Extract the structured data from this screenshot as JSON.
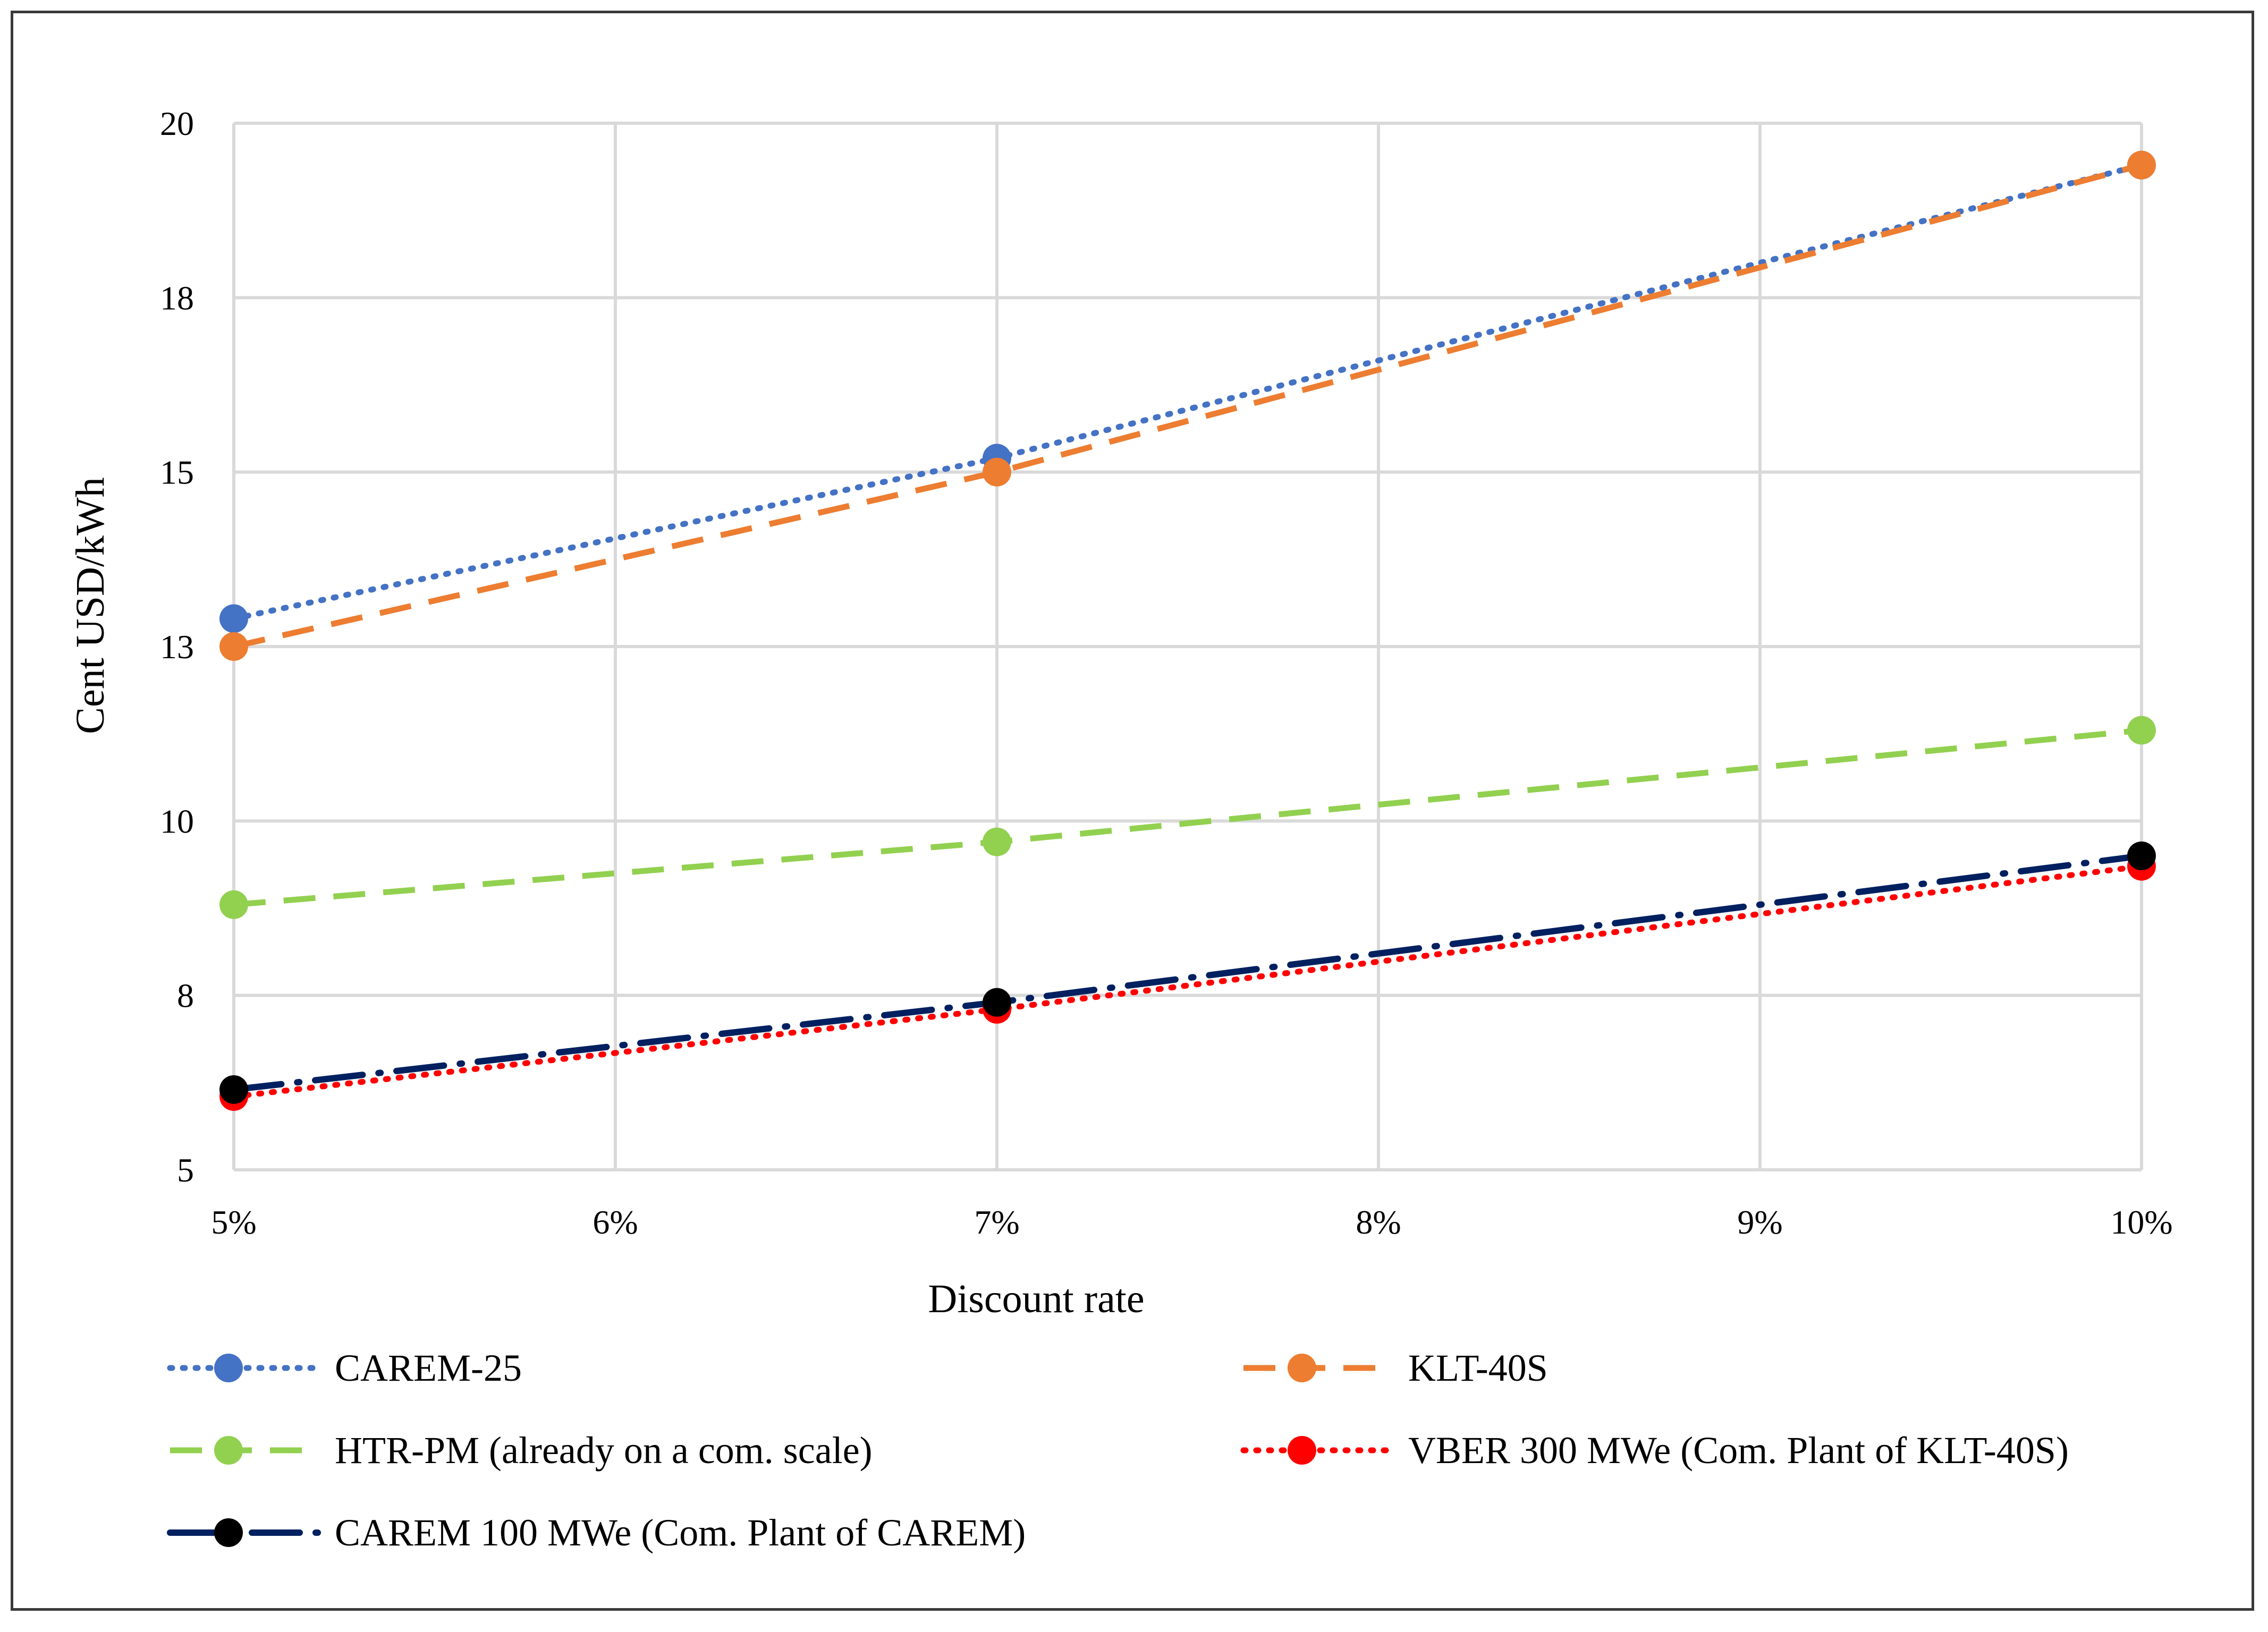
{
  "chart_data": {
    "type": "line",
    "title": "",
    "xlabel": "Discount rate",
    "ylabel": "Cent USD/kWh",
    "x": [
      0.05,
      0.07,
      0.1
    ],
    "xlim": [
      0.05,
      0.1
    ],
    "ylim": [
      5,
      20
    ],
    "x_tick_labels": [
      "5%",
      "6%",
      "7%",
      "8%",
      "9%",
      "10%"
    ],
    "y_tick_labels": [
      "5",
      "8",
      "10",
      "13",
      "15",
      "18",
      "20"
    ],
    "grid": true,
    "legend_position": "bottom",
    "series": [
      {
        "name": "CAREM-25",
        "values": [
          12.9,
          15.2,
          19.4
        ],
        "color": "#4472C4",
        "style": "dotted"
      },
      {
        "name": "KLT-40S",
        "values": [
          12.5,
          15.0,
          19.4
        ],
        "color": "#ED7D31",
        "style": "dashed"
      },
      {
        "name": "HTR-PM (already on a com. scale)",
        "values": [
          8.8,
          9.7,
          11.3
        ],
        "color": "#92D050",
        "style": "dashed"
      },
      {
        "name": "VBER 300 MWe (Com. Plant of KLT-40S)",
        "values": [
          6.05,
          7.3,
          9.35
        ],
        "color": "#FF0000",
        "style": "dotted"
      },
      {
        "name": "CAREM 100 MWe (Com. Plant of CAREM)",
        "values": [
          6.15,
          7.4,
          9.5
        ],
        "color": "#002060",
        "style": "longdash-dot"
      }
    ]
  }
}
